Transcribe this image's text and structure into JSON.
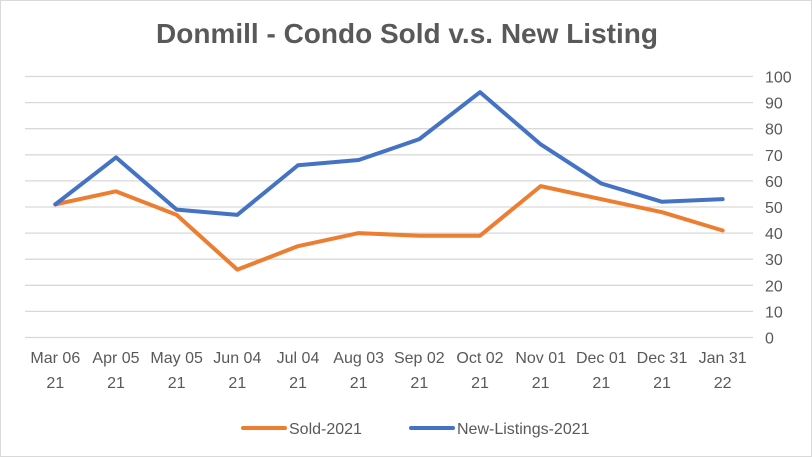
{
  "chart_data": {
    "type": "line",
    "title": "Donmill - Condo Sold v.s. New Listing",
    "xlabel": "",
    "ylabel": "",
    "categories": [
      [
        "Mar 06",
        "21"
      ],
      [
        "Apr 05",
        "21"
      ],
      [
        "May 05",
        "21"
      ],
      [
        "Jun 04",
        "21"
      ],
      [
        "Jul 04",
        "21"
      ],
      [
        "Aug 03",
        "21"
      ],
      [
        "Sep 02",
        "21"
      ],
      [
        "Oct 02",
        "21"
      ],
      [
        "Nov 01",
        "21"
      ],
      [
        "Dec 01",
        "21"
      ],
      [
        "Dec 31",
        "21"
      ],
      [
        "Jan 31",
        "22"
      ]
    ],
    "series": [
      {
        "name": "Sold-2021",
        "color": "#ED7D31",
        "values": [
          51,
          56,
          47,
          26,
          35,
          40,
          39,
          39,
          58,
          53,
          48,
          41
        ]
      },
      {
        "name": "New-Listings-2021",
        "color": "#4472C4",
        "values": [
          51,
          69,
          49,
          47,
          66,
          68,
          76,
          94,
          74,
          59,
          52,
          53
        ]
      }
    ],
    "ylim": [
      0,
      100
    ],
    "yticks": [
      0,
      10,
      20,
      30,
      40,
      50,
      60,
      70,
      80,
      90,
      100
    ],
    "y_axis_side": "right",
    "grid": true,
    "legend": "bottom"
  }
}
